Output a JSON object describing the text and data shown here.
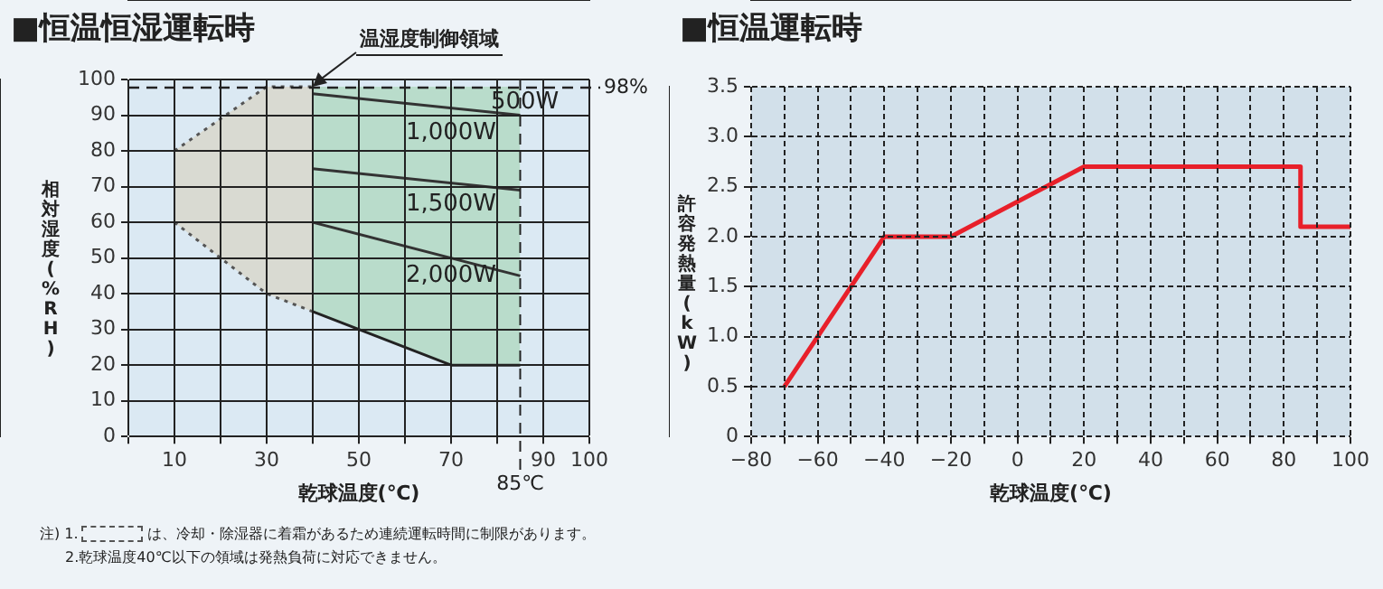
{
  "chart_data": [
    {
      "type": "line",
      "title": "■恒温恒湿運転時",
      "xlabel": "乾球温度(℃)",
      "ylabel": "相対湿度(%RH)",
      "xlim": [
        0,
        100
      ],
      "xticks": [
        {
          "value": 0,
          "label": null
        },
        10,
        {
          "value": 20,
          "label": null
        },
        30,
        {
          "value": 40,
          "label": null
        },
        50,
        {
          "value": 60,
          "label": null
        },
        70,
        {
          "value": 80,
          "label": null
        },
        90,
        100
      ],
      "ylim": [
        0,
        100
      ],
      "yticks": [
        0,
        10,
        20,
        30,
        40,
        50,
        60,
        70,
        80,
        90,
        100
      ],
      "grid": true,
      "legend": false,
      "series": [
        {
          "color": "#222222",
          "x": [
            40,
            70,
            85
          ],
          "values": [
            35,
            20,
            20
          ],
          "lower": [
            35,
            20,
            20
          ],
          "upper": [
            98,
            98,
            98
          ]
        },
        {
          "color": "#555555",
          "x": [
            10,
            30,
            40
          ],
          "values": [
            60,
            40,
            35
          ],
          "lower": [
            60,
            40,
            35
          ],
          "upper": [
            80,
            98,
            98
          ],
          "line_style": "dotted"
        },
        {
          "color": "#555555",
          "x": [
            10,
            30,
            40
          ],
          "values": [
            80,
            98,
            98
          ],
          "line_style": "dotted"
        },
        {
          "color": "#333333",
          "x": [
            40,
            85
          ],
          "values": [
            96,
            90
          ]
        },
        {
          "color": "#333333",
          "x": [
            40,
            85
          ],
          "values": [
            75,
            69
          ]
        },
        {
          "color": "#333333",
          "x": [
            40,
            85
          ],
          "values": [
            60,
            45
          ]
        }
      ],
      "ref_lines": [
        {
          "axis": "y",
          "value": 98,
          "label": "98%",
          "color": "#222222",
          "line_style": "dashed"
        },
        {
          "axis": "x",
          "value": 85,
          "label": "85℃",
          "color": "#222222",
          "line_style": "dashed"
        }
      ],
      "annotations": [
        {
          "text": "温湿度制御領域",
          "x": 40,
          "y": 98
        },
        "500W",
        "1,000W",
        "1,500W",
        "2,000W",
        "注) 1.",
        "は、冷却・除湿器に着霜があるため連続運転時間に制限があります。",
        "2.乾球温度40℃以下の領域は発熱負荷に対応できません。"
      ]
    },
    {
      "type": "line",
      "title": "■恒温運転時",
      "xlabel": "乾球温度(℃)",
      "ylabel": "許容発熱量(kW)",
      "xlim": [
        -80,
        100
      ],
      "xticks": [
        {
          "value": -80,
          "label": "−80"
        },
        {
          "value": -70,
          "label": null
        },
        {
          "value": -60,
          "label": "−60"
        },
        {
          "value": -50,
          "label": null
        },
        {
          "value": -40,
          "label": "−40"
        },
        {
          "value": -30,
          "label": null
        },
        {
          "value": -20,
          "label": "−20"
        },
        {
          "value": -10,
          "label": null
        },
        0,
        {
          "value": 10,
          "label": null
        },
        20,
        {
          "value": 30,
          "label": null
        },
        40,
        {
          "value": 50,
          "label": null
        },
        60,
        {
          "value": 70,
          "label": null
        },
        80,
        {
          "value": 90,
          "label": null
        },
        100
      ],
      "ylim": [
        0,
        3.5
      ],
      "yticks": [
        0,
        0.5,
        {
          "value": 1,
          "label": "1.0"
        },
        1.5,
        {
          "value": 2,
          "label": "2.0"
        },
        2.5,
        {
          "value": 3,
          "label": "3.0"
        },
        3.5
      ],
      "grid": true,
      "legend": false,
      "series": [
        {
          "color": "#e8202a",
          "x": [
            -70,
            -40,
            -20,
            20,
            85,
            85,
            100
          ],
          "values": [
            0.5,
            2,
            2,
            2.7,
            2.7,
            2.1,
            2.1
          ]
        }
      ]
    }
  ]
}
